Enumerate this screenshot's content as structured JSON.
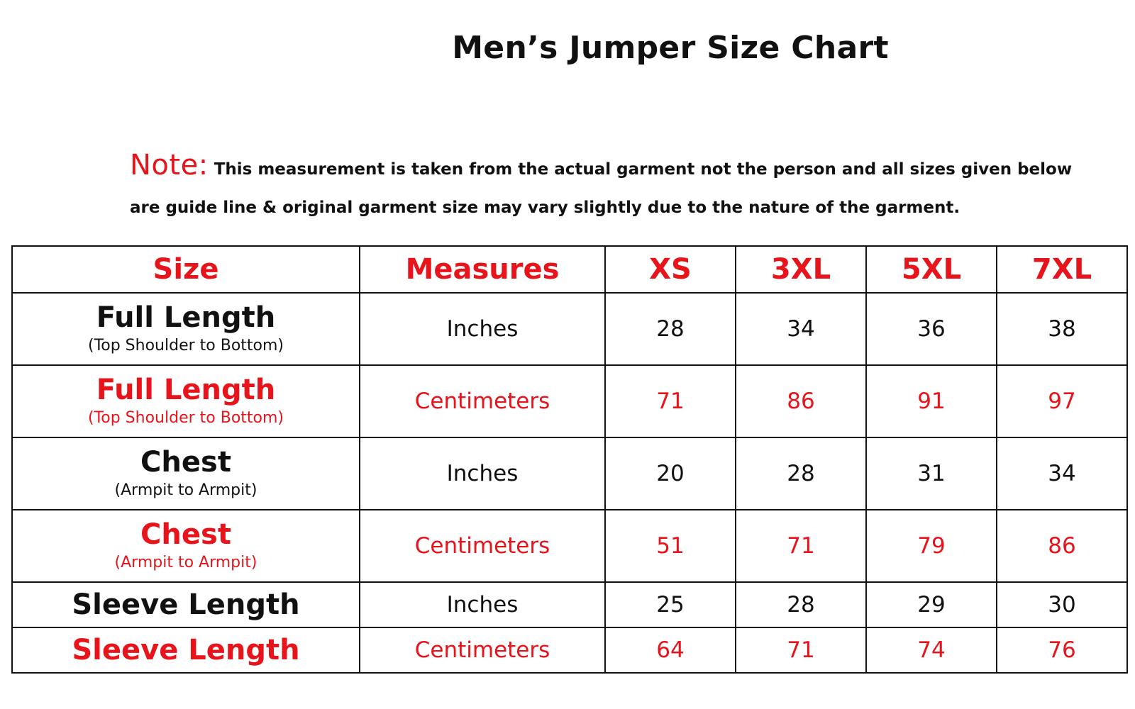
{
  "title": "Men’s Jumper Size Chart",
  "note": {
    "label": "Note:",
    "line1": "This measurement is taken from the actual garment not the person and all sizes given below",
    "line2": "are guide line & original garment size may vary slightly due to the nature of the garment."
  },
  "colors": {
    "accent": "#e8141b",
    "text": "#111111"
  },
  "table": {
    "headers": [
      "Size",
      "Measures",
      "XS",
      "3XL",
      "5XL",
      "7XL"
    ],
    "rows": [
      {
        "label": "Full Length",
        "sub": "(Top Shoulder to Bottom)",
        "unit": "Inches",
        "values": [
          "28",
          "34",
          "36",
          "38"
        ],
        "color": "black"
      },
      {
        "label": "Full Length",
        "sub": "(Top Shoulder to Bottom)",
        "unit": "Centimeters",
        "values": [
          "71",
          "86",
          "91",
          "97"
        ],
        "color": "red"
      },
      {
        "label": "Chest",
        "sub": "(Armpit to Armpit)",
        "unit": "Inches",
        "values": [
          "20",
          "28",
          "31",
          "34"
        ],
        "color": "black"
      },
      {
        "label": "Chest",
        "sub": "(Armpit to Armpit)",
        "unit": "Centimeters",
        "values": [
          "51",
          "71",
          "79",
          "86"
        ],
        "color": "red"
      },
      {
        "label": "Sleeve Length",
        "sub": "",
        "unit": "Inches",
        "values": [
          "25",
          "28",
          "29",
          "30"
        ],
        "color": "black"
      },
      {
        "label": "Sleeve Length",
        "sub": "",
        "unit": "Centimeters",
        "values": [
          "64",
          "71",
          "74",
          "76"
        ],
        "color": "red"
      }
    ]
  }
}
